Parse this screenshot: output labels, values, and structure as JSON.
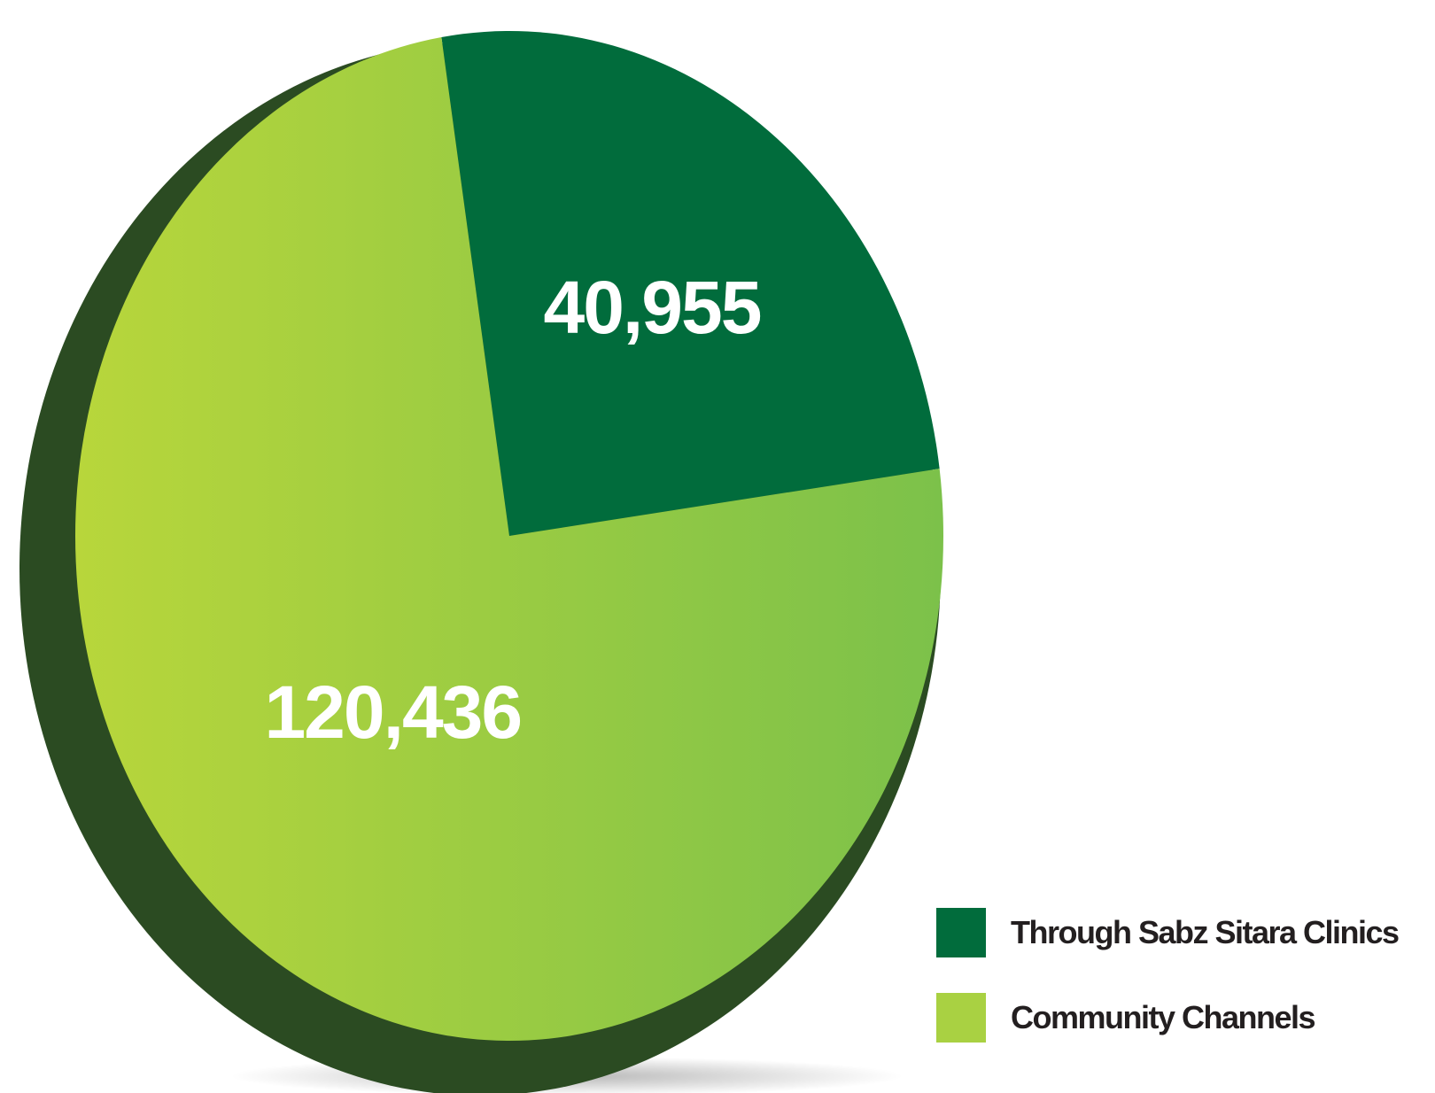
{
  "chart_data": {
    "type": "pie",
    "title": "",
    "slices": [
      {
        "label": "Through Sabz Sitara Clinics",
        "value": 40955,
        "display": "40,955",
        "color": "#016c3c"
      },
      {
        "label": "Community Channels",
        "value": 120436,
        "display": "120,436",
        "color": "#a9d142"
      }
    ],
    "legend_position": "bottom-right"
  },
  "colors": {
    "clinics": "#016c3c",
    "community": "#a9d142",
    "community_light": "#b8d63b",
    "community_dark": "#7cc14a",
    "rim": "#2b4b22",
    "legend_text": "#231f20"
  }
}
